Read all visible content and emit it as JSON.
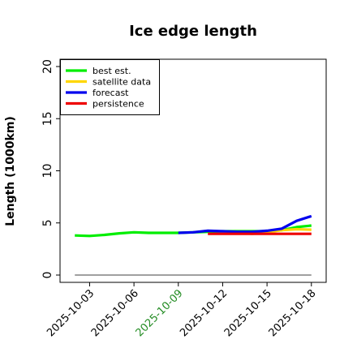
{
  "chart_data": {
    "type": "line",
    "title": "Ice edge length",
    "xlabel": "",
    "ylabel": "Length (1000km)",
    "x_ticks": [
      "2025-10-03",
      "2025-10-06",
      "2025-10-09",
      "2025-10-12",
      "2025-10-15",
      "2025-10-18"
    ],
    "highlight_tick": "2025-10-09",
    "highlight_color": "#228b22",
    "xlim": [
      "2025-10-01",
      "2025-10-19"
    ],
    "ylim": [
      -0.7,
      20.7
    ],
    "y_ticks": [
      0,
      5,
      10,
      15,
      20
    ],
    "grid": false,
    "legend_position": "top-left",
    "series": [
      {
        "name": "best est.",
        "color": "#00ee00",
        "x": [
          "2025-10-02",
          "2025-10-03",
          "2025-10-04",
          "2025-10-05",
          "2025-10-06",
          "2025-10-07",
          "2025-10-08",
          "2025-10-09",
          "2025-10-10",
          "2025-10-11",
          "2025-10-12",
          "2025-10-13",
          "2025-10-14",
          "2025-10-15",
          "2025-10-16",
          "2025-10-17",
          "2025-10-18"
        ],
        "values": [
          3.8,
          3.75,
          3.85,
          4.0,
          4.1,
          4.05,
          4.05,
          4.05,
          4.1,
          4.15,
          4.2,
          4.2,
          4.2,
          4.2,
          4.3,
          4.6,
          4.75
        ]
      },
      {
        "name": "satellite data",
        "color": "#ffd700",
        "x": [
          "2025-10-13",
          "2025-10-14",
          "2025-10-15",
          "2025-10-16",
          "2025-10-17",
          "2025-10-18"
        ],
        "values": [
          4.05,
          3.95,
          4.1,
          4.3,
          4.4,
          4.35
        ]
      },
      {
        "name": "forecast",
        "color": "#0000ee",
        "x": [
          "2025-10-09",
          "2025-10-10",
          "2025-10-11",
          "2025-10-12",
          "2025-10-13",
          "2025-10-14",
          "2025-10-15",
          "2025-10-16",
          "2025-10-17",
          "2025-10-18"
        ],
        "values": [
          4.05,
          4.1,
          4.25,
          4.2,
          4.15,
          4.15,
          4.25,
          4.45,
          5.2,
          5.65
        ]
      },
      {
        "name": "persistence",
        "color": "#ee0000",
        "x": [
          "2025-10-11",
          "2025-10-18"
        ],
        "values": [
          3.95,
          3.95
        ]
      }
    ],
    "reference_line": {
      "y": 0,
      "color": "#808080"
    }
  }
}
